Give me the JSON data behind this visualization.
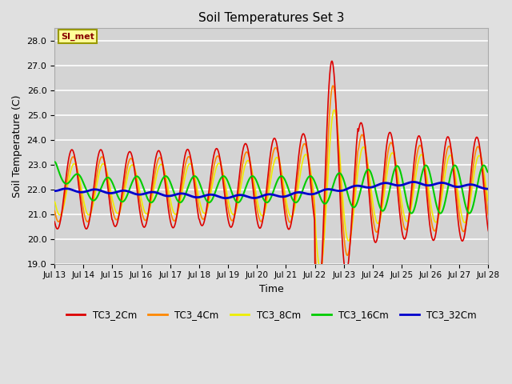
{
  "title": "Soil Temperatures Set 3",
  "xlabel": "Time",
  "ylabel": "Soil Temperature (C)",
  "ylim": [
    19.0,
    28.5
  ],
  "yticks": [
    19.0,
    20.0,
    21.0,
    22.0,
    23.0,
    24.0,
    25.0,
    26.0,
    27.0,
    28.0
  ],
  "xtick_labels": [
    "Jul 13",
    "Jul 14",
    "Jul 15",
    "Jul 16",
    "Jul 17",
    "Jul 18",
    "Jul 19",
    "Jul 20",
    "Jul 21",
    "Jul 22",
    "Jul 23",
    "Jul 24",
    "Jul 25",
    "Jul 26",
    "Jul 27",
    "Jul 28"
  ],
  "background_color": "#e0e0e0",
  "plot_bg_color": "#d4d4d4",
  "grid_color": "#ffffff",
  "annotation_text": "SI_met",
  "annotation_bg": "#ffff99",
  "annotation_border": "#999900",
  "series": {
    "TC3_2Cm": {
      "color": "#dd0000",
      "lw": 1.2
    },
    "TC3_4Cm": {
      "color": "#ff8800",
      "lw": 1.2
    },
    "TC3_8Cm": {
      "color": "#eeee00",
      "lw": 1.2
    },
    "TC3_16Cm": {
      "color": "#00cc00",
      "lw": 1.5
    },
    "TC3_32Cm": {
      "color": "#0000cc",
      "lw": 2.0
    }
  }
}
